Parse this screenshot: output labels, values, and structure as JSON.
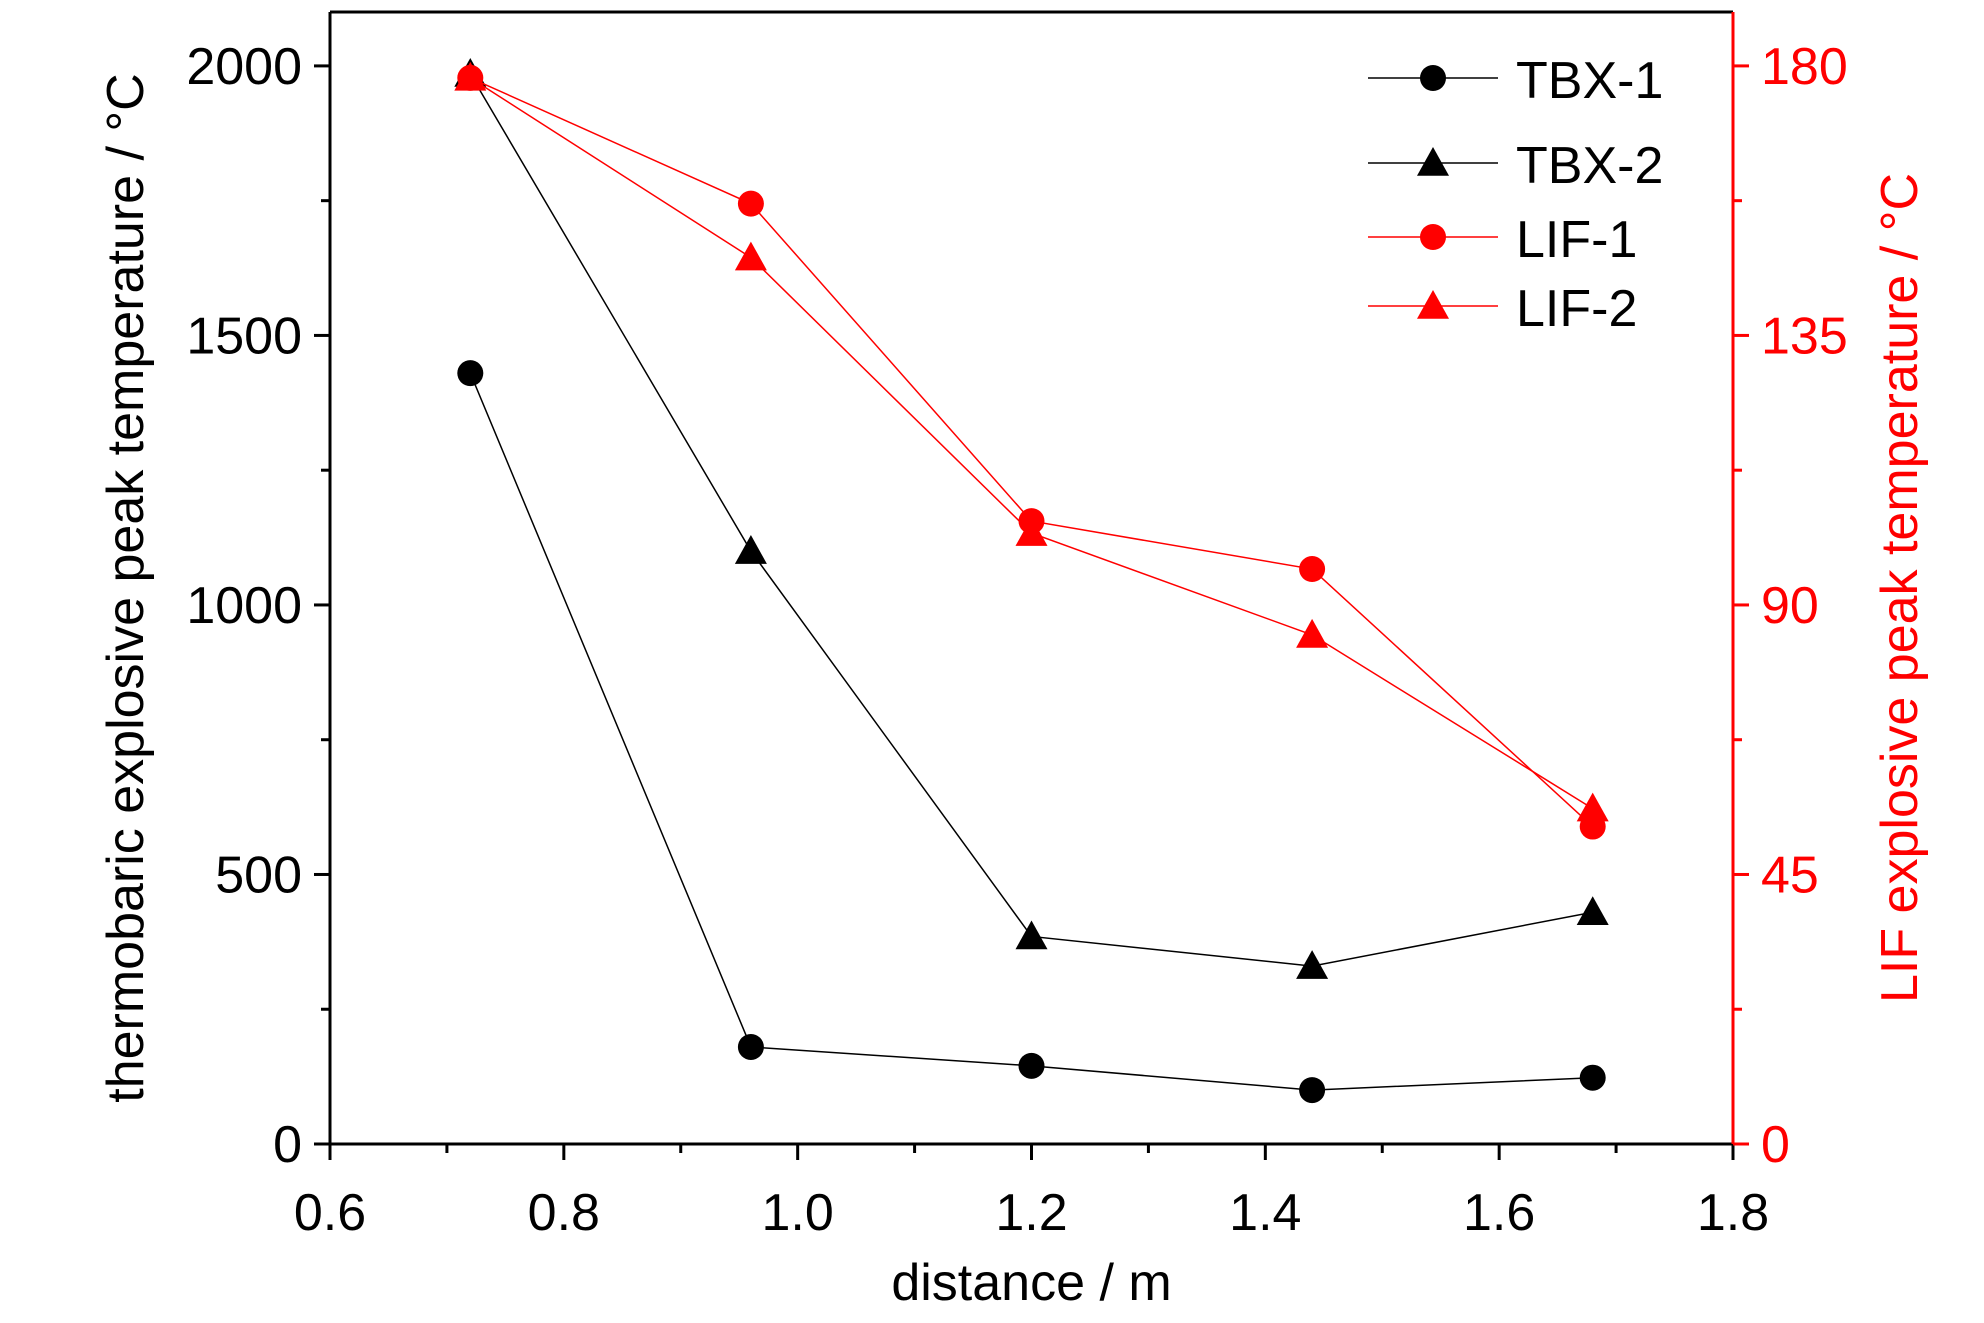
{
  "chart_data": {
    "type": "line",
    "title": "",
    "xlabel": "distance / m",
    "ylabel": "thermobaric explosive peak temperature / °C",
    "y2label": "LIF explosive peak temperature / °C",
    "xlim": [
      0.6,
      1.8
    ],
    "ylim": [
      0,
      2100
    ],
    "y2lim": [
      0,
      189
    ],
    "x_ticks": [
      "0.6",
      "0.8",
      "1.0",
      "1.2",
      "1.4",
      "1.6",
      "1.8"
    ],
    "y_ticks": [
      "0",
      "500",
      "1000",
      "1500",
      "2000"
    ],
    "y2_ticks": [
      "0",
      "45",
      "90",
      "135",
      "180"
    ],
    "x": [
      0.72,
      0.96,
      1.2,
      1.44,
      1.68
    ],
    "series": [
      {
        "name": "TBX-1",
        "axis": "left",
        "marker": "circle",
        "color": "#000000",
        "values": [
          1430,
          180,
          145,
          100,
          123
        ]
      },
      {
        "name": "TBX-2",
        "axis": "left",
        "marker": "triangle",
        "color": "#000000",
        "values": [
          1985,
          1100,
          385,
          330,
          430
        ]
      },
      {
        "name": "LIF-1",
        "axis": "right",
        "marker": "circle",
        "color": "#ff0000",
        "values": [
          178,
          157,
          104,
          96,
          53
        ]
      },
      {
        "name": "LIF-2",
        "axis": "right",
        "marker": "triangle",
        "color": "#ff0000",
        "values": [
          178,
          148,
          102,
          85,
          56
        ]
      }
    ],
    "legend_position": "top-right",
    "grid": false,
    "left_axis_color": "#000000",
    "right_axis_color": "#ff0000"
  }
}
